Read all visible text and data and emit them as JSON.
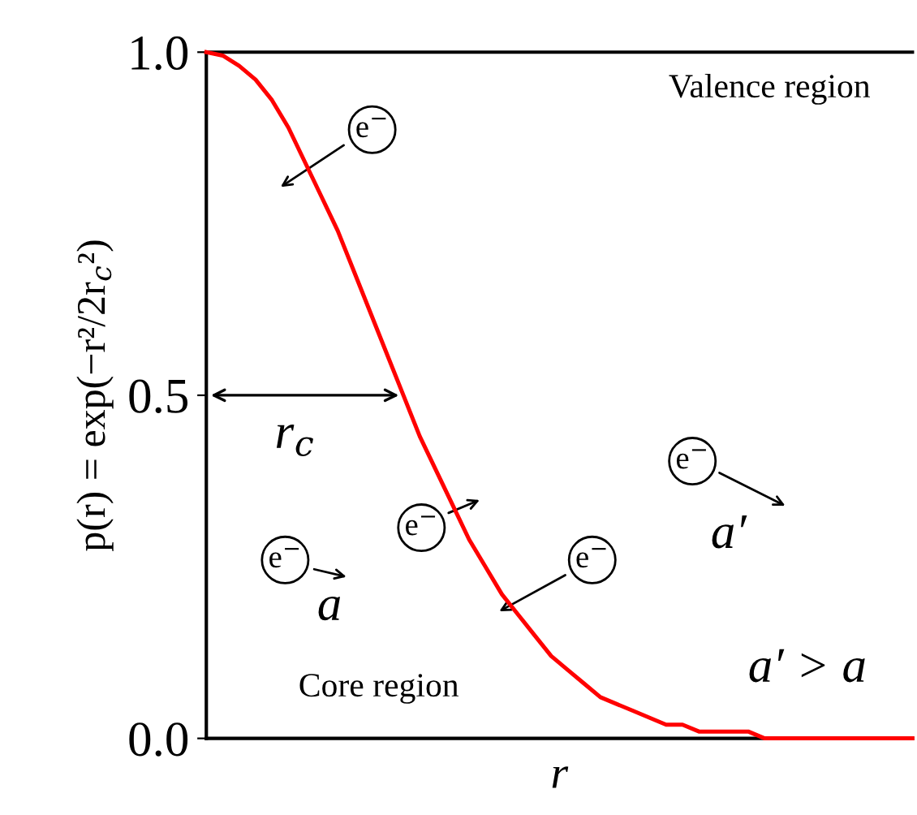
{
  "chart_data": {
    "type": "line",
    "ylabel": "p(r) = exp(−r²/2r$_{c}$²)",
    "xlabel": "r",
    "categories": [
      null,
      null,
      null,
      null,
      null,
      null,
      null,
      null,
      null,
      null,
      null,
      null,
      null,
      null,
      null,
      null,
      null,
      null,
      null,
      null,
      null,
      null,
      null,
      null,
      null,
      null,
      null,
      null,
      null,
      null,
      null,
      null,
      null,
      null,
      null,
      null,
      null,
      null,
      null,
      null,
      null,
      null,
      null,
      null
    ],
    "series": [
      {
        "color": "#ff0000",
        "values": [
          1.0,
          0.995,
          0.98,
          0.96,
          0.93,
          0.89,
          0.84,
          0.79,
          0.74,
          0.68,
          0.62,
          0.56,
          0.5,
          0.44,
          0.39,
          0.34,
          0.29,
          0.25,
          0.21,
          0.18,
          0.15,
          0.12,
          0.1,
          0.08,
          0.06,
          0.05,
          0.04,
          0.03,
          0.02,
          0.02,
          0.01,
          0.01,
          0.01,
          0.01,
          0.0,
          0.0,
          0.0,
          0.0,
          0.0,
          0.0,
          0.0,
          0.0,
          0.0,
          0.0
        ]
      }
    ],
    "ylim": [
      0,
      1
    ],
    "yticks": [
      {
        "value": 0,
        "label": "0.0"
      },
      {
        "value": 0.5,
        "label": "0.5"
      },
      {
        "value": 1,
        "label": "1.0"
      }
    ],
    "tick_labels": "y",
    "marker": "none",
    "line_style": "solid",
    "annotations": [
      "e$^{−}$",
      "e$^{−}$",
      "e$^{−}$",
      "e$^{−}$",
      "e$^{−}$",
      "Valence region",
      "Core region",
      "a",
      "a′",
      "a′ > a",
      "r$_{c}$"
    ]
  }
}
